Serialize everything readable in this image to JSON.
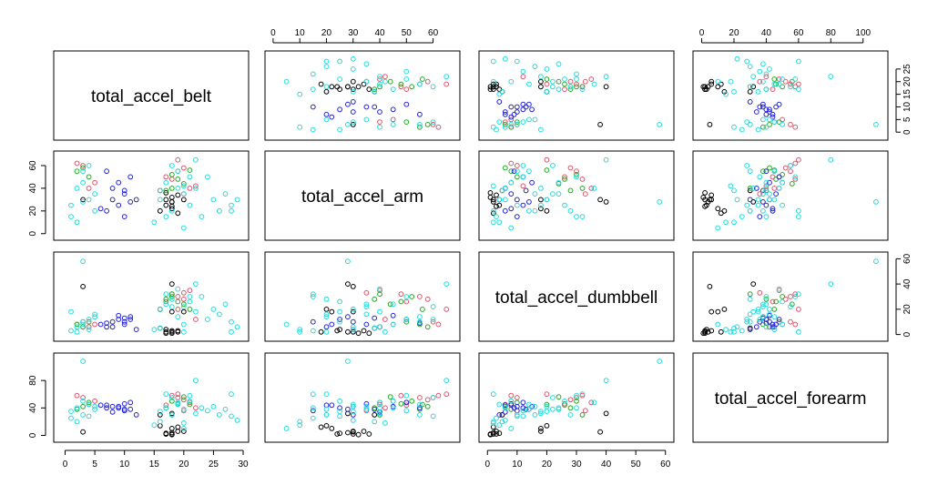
{
  "chart_data": {
    "type": "scatter",
    "title": "",
    "variables": [
      "total_accel_belt",
      "total_accel_arm",
      "total_accel_dumbbell",
      "total_accel_forearm"
    ],
    "axes": {
      "total_accel_belt": {
        "ticks": [
          0,
          5,
          10,
          15,
          20,
          25,
          30
        ],
        "range": [
          -1,
          30
        ]
      },
      "total_accel_arm": {
        "ticks": [
          0,
          10,
          20,
          30,
          40,
          50,
          60
        ],
        "range": [
          -1,
          68
        ]
      },
      "total_accel_dumbbell": {
        "ticks": [
          0,
          10,
          20,
          30,
          40,
          50,
          60
        ],
        "range": [
          -1,
          61
        ]
      },
      "total_accel_forearm": {
        "ticks": [
          0,
          20,
          40,
          60,
          80,
          100
        ],
        "range": [
          -2,
          112
        ]
      }
    },
    "panel_axis_ticks": {
      "top": [
        {
          "col": 1,
          "var": "total_accel_arm",
          "ticks": [
            0,
            10,
            20,
            30,
            40,
            50,
            60
          ]
        },
        {
          "col": 3,
          "var": "total_accel_forearm",
          "ticks": [
            0,
            20,
            40,
            60,
            80,
            100
          ]
        }
      ],
      "bottom": [
        {
          "col": 0,
          "var": "total_accel_belt",
          "ticks": [
            0,
            5,
            10,
            15,
            20,
            25,
            30
          ]
        },
        {
          "col": 2,
          "var": "total_accel_dumbbell",
          "ticks": [
            0,
            10,
            20,
            30,
            40,
            50,
            60
          ]
        }
      ],
      "left": [
        {
          "row": 1,
          "var": "total_accel_arm",
          "ticks": [
            0,
            20,
            40,
            60
          ]
        },
        {
          "row": 3,
          "var": "total_accel_forearm",
          "ticks": [
            0,
            40,
            80
          ]
        }
      ],
      "right": [
        {
          "row": 0,
          "var": "total_accel_belt",
          "ticks": [
            0,
            5,
            10,
            15,
            20,
            25
          ]
        },
        {
          "row": 2,
          "var": "total_accel_dumbbell",
          "ticks": [
            0,
            20,
            40,
            60
          ]
        }
      ]
    },
    "class_colors": {
      "A": "#000000",
      "B": "#DF536B",
      "C": "#22AA22",
      "D": "#2222DD",
      "E": "#22DDDD"
    },
    "grid": false,
    "legend": "none",
    "note": "Scatterplot matrix of four acceleration variables; points coloured by class",
    "series": [
      {
        "color": "#000000",
        "points": [
          [
            18,
            32,
            1,
            1
          ],
          [
            17,
            30,
            2,
            2
          ],
          [
            18,
            28,
            2,
            4
          ],
          [
            19,
            34,
            3,
            6
          ],
          [
            17,
            36,
            1,
            2
          ],
          [
            18,
            22,
            18,
            10
          ],
          [
            16,
            20,
            20,
            14
          ],
          [
            19,
            18,
            2,
            12
          ],
          [
            3,
            30,
            38,
            5
          ],
          [
            20,
            30,
            18,
            6
          ],
          [
            17,
            25,
            4,
            3
          ],
          [
            18,
            24,
            3,
            2
          ],
          [
            16,
            38,
            5,
            30
          ],
          [
            18,
            28,
            40,
            32
          ]
        ]
      },
      {
        "color": "#DF536B",
        "points": [
          [
            2,
            62,
            8,
            58
          ],
          [
            3,
            60,
            10,
            55
          ],
          [
            19,
            55,
            30,
            55
          ],
          [
            20,
            58,
            28,
            52
          ],
          [
            18,
            48,
            32,
            58
          ],
          [
            21,
            40,
            35,
            48
          ],
          [
            19,
            65,
            20,
            60
          ],
          [
            17,
            50,
            26,
            44
          ],
          [
            22,
            42,
            12,
            40
          ],
          [
            20,
            35,
            33,
            36
          ],
          [
            5,
            45,
            8,
            50
          ],
          [
            4,
            40,
            6,
            45
          ]
        ]
      },
      {
        "color": "#22AA22",
        "points": [
          [
            3,
            58,
            6,
            42
          ],
          [
            2,
            55,
            8,
            38
          ],
          [
            18,
            52,
            30,
            50
          ],
          [
            19,
            48,
            26,
            46
          ],
          [
            20,
            44,
            24,
            56
          ],
          [
            17,
            38,
            28,
            40
          ],
          [
            21,
            56,
            20,
            45
          ],
          [
            4,
            50,
            10,
            48
          ],
          [
            18,
            40,
            32,
            30
          ]
        ]
      },
      {
        "color": "#2222DD",
        "points": [
          [
            8,
            30,
            10,
            42
          ],
          [
            9,
            25,
            12,
            40
          ],
          [
            10,
            35,
            8,
            46
          ],
          [
            11,
            28,
            14,
            38
          ],
          [
            7,
            20,
            6,
            44
          ],
          [
            9,
            45,
            15,
            42
          ],
          [
            10,
            15,
            10,
            36
          ],
          [
            11,
            50,
            12,
            48
          ],
          [
            8,
            40,
            6,
            34
          ],
          [
            7,
            55,
            9,
            40
          ],
          [
            12,
            30,
            4,
            30
          ],
          [
            6,
            22,
            8,
            44
          ],
          [
            10,
            38,
            13,
            38
          ]
        ]
      },
      {
        "color": "#22DDDD",
        "points": [
          [
            1,
            15,
            3,
            25
          ],
          [
            2,
            40,
            6,
            40
          ],
          [
            3,
            55,
            10,
            30
          ],
          [
            4,
            30,
            4,
            45
          ],
          [
            5,
            20,
            14,
            38
          ],
          [
            2,
            10,
            2,
            20
          ],
          [
            1,
            25,
            18,
            35
          ],
          [
            3,
            45,
            8,
            50
          ],
          [
            4,
            60,
            12,
            28
          ],
          [
            5,
            35,
            16,
            42
          ],
          [
            16,
            30,
            20,
            35
          ],
          [
            17,
            45,
            24,
            40
          ],
          [
            18,
            20,
            28,
            30
          ],
          [
            19,
            55,
            14,
            45
          ],
          [
            20,
            35,
            22,
            38
          ],
          [
            21,
            25,
            26,
            50
          ],
          [
            22,
            40,
            18,
            32
          ],
          [
            23,
            15,
            30,
            40
          ],
          [
            24,
            50,
            12,
            36
          ],
          [
            25,
            30,
            20,
            42
          ],
          [
            26,
            20,
            16,
            30
          ],
          [
            27,
            35,
            24,
            38
          ],
          [
            28,
            25,
            10,
            28
          ],
          [
            29,
            30,
            6,
            22
          ],
          [
            15,
            10,
            4,
            15
          ],
          [
            18,
            60,
            22,
            55
          ],
          [
            20,
            5,
            8,
            10
          ],
          [
            17,
            15,
            32,
            60
          ],
          [
            19,
            40,
            36,
            48
          ],
          [
            21,
            50,
            30,
            58
          ],
          [
            3,
            28,
            58,
            108
          ],
          [
            28,
            20,
            2,
            60
          ],
          [
            22,
            65,
            40,
            80
          ],
          [
            16,
            38,
            5,
            20
          ],
          [
            20,
            42,
            2,
            18
          ]
        ]
      }
    ]
  }
}
